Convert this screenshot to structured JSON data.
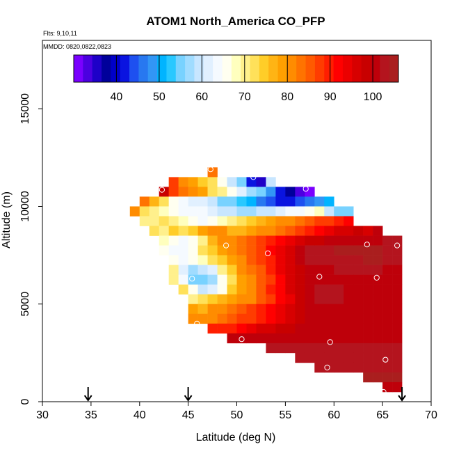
{
  "chart_data": {
    "type": "heatmap",
    "title": "ATOM1 North_America CO_PFP",
    "subtitle_flights": "Flts: 9,10,11",
    "subtitle_dates": "MMDD: 0820,0822,0823",
    "xlabel": "Latitude (deg N)",
    "ylabel": "Altitude (m)",
    "xlim": [
      30,
      70
    ],
    "ylim": [
      0,
      18500
    ],
    "x_ticks": [
      30,
      35,
      40,
      45,
      50,
      55,
      60,
      65,
      70
    ],
    "y_ticks": [
      0,
      5000,
      10000,
      15000
    ],
    "y_tick_labels": [
      "0",
      "5000",
      "10000",
      "15000"
    ],
    "grid": false,
    "colorbar": {
      "min": 30,
      "max": 106,
      "tick_values": [
        40,
        50,
        60,
        70,
        80,
        90,
        100
      ],
      "tick_labels": [
        "40",
        "50",
        "60",
        "70",
        "80",
        "90",
        "100"
      ],
      "colors": [
        "#7a00ff",
        "#4b00e0",
        "#1e00c8",
        "#00009b",
        "#0000c8",
        "#0a14e0",
        "#1e50f0",
        "#2878f0",
        "#3296f5",
        "#00b4ff",
        "#28c8ff",
        "#78d2ff",
        "#a0dcff",
        "#c8e6ff",
        "#e1f0ff",
        "#f5faff",
        "#fffff0",
        "#ffffbe",
        "#fff08c",
        "#ffe15a",
        "#ffcd28",
        "#ffb414",
        "#ffa000",
        "#ff8c00",
        "#ff7300",
        "#ff5a00",
        "#ff3c00",
        "#ff1e00",
        "#ff0000",
        "#eb0000",
        "#d70000",
        "#c80000",
        "#be000a",
        "#b4141e",
        "#aa1e1e"
      ]
    },
    "markers": [
      {
        "label": "arrow-1",
        "lat": 34.7
      },
      {
        "label": "arrow-2",
        "lat": 45.0
      },
      {
        "label": "arrow-3",
        "lat": 67.0
      }
    ],
    "cell_lat_step": 1,
    "cell_alt_step": 500,
    "cells": [
      {
        "lat0": 47,
        "alt0": 11500,
        "lats": [
          47
        ],
        "values": [
          84
        ]
      },
      {
        "lat0": 43,
        "alt0": 11000,
        "lats": [
          43,
          44,
          45,
          46,
          47,
          48,
          49,
          50,
          51,
          52,
          53
        ],
        "values": [
          88,
          82,
          78,
          74,
          72,
          66,
          60,
          56,
          42,
          36,
          60
        ]
      },
      {
        "lat0": 42,
        "alt0": 10500,
        "lats": [
          42,
          43,
          44,
          45,
          46,
          47,
          48,
          49,
          50,
          51,
          52,
          53,
          54,
          55,
          56,
          57
        ],
        "values": [
          98,
          88,
          84,
          80,
          78,
          72,
          70,
          66,
          62,
          58,
          56,
          48,
          42,
          38,
          34,
          32
        ]
      },
      {
        "lat0": 40,
        "alt0": 10000,
        "lats": [
          40,
          41,
          42,
          43,
          44,
          45,
          46,
          47,
          48,
          49,
          50,
          51,
          52,
          53,
          54,
          55,
          56,
          57,
          58,
          59
        ],
        "values": [
          84,
          76,
          72,
          66,
          64,
          62,
          62,
          60,
          56,
          54,
          52,
          50,
          46,
          44,
          42,
          42,
          44,
          46,
          48,
          50
        ]
      },
      {
        "lat0": 39,
        "alt0": 9500,
        "lats": [
          39,
          40,
          41,
          42,
          43,
          44,
          45,
          46,
          47,
          48,
          49,
          50,
          51,
          52,
          53,
          54,
          55,
          56,
          57,
          58,
          59,
          60,
          61
        ],
        "values": [
          80,
          72,
          70,
          68,
          66,
          64,
          64,
          64,
          62,
          60,
          60,
          58,
          58,
          60,
          60,
          62,
          64,
          64,
          66,
          68,
          60,
          56,
          54
        ]
      },
      {
        "lat0": 40,
        "alt0": 9000,
        "lats": [
          40,
          41,
          42,
          43,
          44,
          45,
          46,
          47,
          48,
          49,
          50,
          51,
          52,
          53,
          54,
          55,
          56,
          57,
          58,
          59,
          60,
          61
        ],
        "values": [
          70,
          70,
          72,
          70,
          68,
          66,
          64,
          66,
          68,
          70,
          72,
          74,
          76,
          78,
          80,
          82,
          84,
          86,
          88,
          88,
          90,
          92
        ]
      },
      {
        "lat0": 41,
        "alt0": 8500,
        "lats": [
          41,
          42,
          43,
          44,
          45,
          46,
          47,
          48,
          49,
          50,
          51,
          52,
          53,
          54,
          55,
          56,
          57,
          58,
          59,
          60,
          61,
          62,
          63,
          64
        ],
        "values": [
          72,
          70,
          74,
          72,
          74,
          78,
          82,
          80,
          76,
          76,
          78,
          80,
          82,
          84,
          86,
          88,
          90,
          92,
          94,
          96,
          96,
          98,
          96,
          100
        ]
      },
      {
        "lat0": 42,
        "alt0": 8000,
        "lats": [
          42,
          43,
          44,
          45,
          46,
          47,
          48,
          49,
          50,
          51,
          52,
          53,
          54,
          55,
          56,
          57,
          58,
          59,
          60,
          61,
          62,
          63,
          64,
          65,
          66
        ],
        "values": [
          68,
          66,
          64,
          66,
          70,
          76,
          80,
          82,
          84,
          86,
          88,
          90,
          92,
          94,
          96,
          98,
          98,
          100,
          100,
          100,
          100,
          100,
          100,
          102,
          102
        ]
      },
      {
        "lat0": 42,
        "alt0": 7500,
        "lats": [
          42,
          43,
          44,
          45,
          46,
          47,
          48,
          49,
          50,
          51,
          52,
          53,
          54,
          55,
          56,
          57,
          58,
          59,
          60,
          61,
          62,
          63,
          64,
          65,
          66
        ],
        "values": [
          66,
          64,
          64,
          66,
          72,
          74,
          78,
          80,
          84,
          86,
          88,
          92,
          94,
          96,
          100,
          102,
          102,
          102,
          104,
          104,
          104,
          104,
          104,
          102,
          102
        ]
      },
      {
        "lat0": 43,
        "alt0": 7000,
        "lats": [
          43,
          44,
          45,
          46,
          47,
          48,
          49,
          50,
          51,
          52,
          53,
          54,
          55,
          56,
          57,
          58,
          59,
          60,
          61,
          62,
          63,
          64,
          65,
          66
        ],
        "values": [
          66,
          64,
          66,
          68,
          72,
          74,
          78,
          82,
          86,
          88,
          90,
          94,
          96,
          100,
          102,
          102,
          102,
          102,
          102,
          102,
          104,
          104,
          102,
          102
        ]
      },
      {
        "lat0": 43,
        "alt0": 6500,
        "lats": [
          43,
          44,
          45,
          46,
          47,
          48,
          49,
          50,
          51,
          52,
          53,
          54,
          55,
          56,
          57,
          58,
          59,
          60,
          61,
          62,
          63,
          64,
          65,
          66
        ],
        "values": [
          70,
          62,
          58,
          60,
          62,
          70,
          74,
          80,
          84,
          86,
          90,
          94,
          96,
          98,
          100,
          100,
          100,
          102,
          102,
          102,
          102,
          102,
          100,
          100
        ]
      },
      {
        "lat0": 43,
        "alt0": 6000,
        "lats": [
          43,
          44,
          45,
          46,
          47,
          48,
          49,
          50,
          51,
          52,
          53,
          54,
          55,
          56,
          57,
          58,
          59,
          60,
          61,
          62,
          63,
          64,
          65,
          66
        ],
        "values": [
          70,
          64,
          56,
          54,
          58,
          66,
          72,
          78,
          82,
          86,
          88,
          92,
          96,
          98,
          100,
          100,
          100,
          100,
          100,
          100,
          100,
          100,
          100,
          100
        ]
      },
      {
        "lat0": 44,
        "alt0": 5500,
        "lats": [
          44,
          45,
          46,
          47,
          48,
          49,
          50,
          51,
          52,
          53,
          54,
          55,
          56,
          57,
          58,
          59,
          60,
          61,
          62,
          63,
          64,
          65,
          66
        ],
        "values": [
          72,
          66,
          60,
          62,
          66,
          74,
          78,
          82,
          86,
          90,
          92,
          96,
          98,
          100,
          102,
          102,
          102,
          100,
          100,
          100,
          100,
          100,
          100
        ]
      },
      {
        "lat0": 45,
        "alt0": 5000,
        "lats": [
          45,
          46,
          47,
          48,
          49,
          50,
          51,
          52,
          53,
          54,
          55,
          56,
          57,
          58,
          59,
          60,
          61,
          62,
          63,
          64,
          65,
          66
        ],
        "values": [
          70,
          72,
          74,
          76,
          78,
          80,
          82,
          86,
          88,
          92,
          94,
          98,
          100,
          102,
          102,
          102,
          100,
          100,
          100,
          100,
          100,
          100
        ]
      },
      {
        "lat0": 45,
        "alt0": 4500,
        "lats": [
          45,
          46,
          47,
          48,
          49,
          50,
          51,
          52,
          53,
          54,
          55,
          56,
          57,
          58,
          59,
          60,
          61,
          62,
          63,
          64,
          65,
          66
        ],
        "values": [
          78,
          76,
          80,
          82,
          84,
          86,
          88,
          90,
          92,
          94,
          96,
          98,
          100,
          100,
          100,
          100,
          100,
          100,
          100,
          100,
          100,
          100
        ]
      },
      {
        "lat0": 45,
        "alt0": 4000,
        "lats": [
          45,
          46,
          47,
          48,
          49,
          50,
          51,
          52,
          53,
          54,
          55,
          56,
          57,
          58,
          59,
          60,
          61,
          62,
          63,
          64,
          65,
          66
        ],
        "values": [
          82,
          80,
          82,
          84,
          86,
          88,
          88,
          90,
          92,
          94,
          96,
          98,
          100,
          100,
          100,
          100,
          100,
          100,
          100,
          100,
          100,
          100
        ]
      },
      {
        "lat0": 47,
        "alt0": 3500,
        "lats": [
          47,
          48,
          49,
          50,
          51,
          52,
          53,
          54,
          55,
          56,
          57,
          58,
          59,
          60,
          61,
          62,
          63,
          64,
          65,
          66
        ],
        "values": [
          90,
          90,
          90,
          92,
          94,
          96,
          96,
          98,
          98,
          100,
          100,
          100,
          100,
          100,
          100,
          100,
          100,
          100,
          100,
          100
        ]
      },
      {
        "lat0": 49,
        "alt0": 3000,
        "lats": [
          49,
          50,
          51,
          52,
          53,
          54,
          55,
          56,
          57,
          58,
          59,
          60,
          61,
          62,
          63,
          64,
          65,
          66
        ],
        "values": [
          100,
          100,
          100,
          100,
          100,
          100,
          100,
          100,
          100,
          100,
          100,
          100,
          100,
          100,
          100,
          100,
          100,
          100
        ]
      },
      {
        "lat0": 53,
        "alt0": 2500,
        "lats": [
          53,
          54,
          55,
          56,
          57,
          58,
          59,
          60,
          61,
          62,
          63,
          64,
          65,
          66
        ],
        "values": [
          102,
          102,
          102,
          102,
          102,
          102,
          102,
          102,
          102,
          102,
          102,
          102,
          102,
          102
        ]
      },
      {
        "lat0": 56,
        "alt0": 2000,
        "lats": [
          56,
          57,
          58,
          59,
          60,
          61,
          62,
          63,
          64,
          65,
          66
        ],
        "values": [
          102,
          102,
          102,
          102,
          102,
          102,
          102,
          102,
          102,
          102,
          102
        ]
      },
      {
        "lat0": 58,
        "alt0": 1500,
        "lats": [
          58,
          59,
          60,
          61,
          62,
          63,
          64,
          65,
          66
        ],
        "values": [
          102,
          102,
          102,
          102,
          102,
          102,
          102,
          102,
          102
        ]
      },
      {
        "lat0": 63,
        "alt0": 1000,
        "lats": [
          63,
          64,
          65,
          66
        ],
        "values": [
          104,
          104,
          104,
          104
        ]
      },
      {
        "lat0": 65,
        "alt0": 500,
        "lats": [
          65,
          66
        ],
        "values": [
          100,
          100
        ]
      }
    ],
    "samples": [
      {
        "lat": 47.3,
        "alt": 11900
      },
      {
        "lat": 51.7,
        "alt": 11500
      },
      {
        "lat": 42.3,
        "alt": 10850
      },
      {
        "lat": 57.1,
        "alt": 10900
      },
      {
        "lat": 48.9,
        "alt": 8000
      },
      {
        "lat": 53.2,
        "alt": 7600
      },
      {
        "lat": 63.4,
        "alt": 8050
      },
      {
        "lat": 66.5,
        "alt": 8000
      },
      {
        "lat": 45.4,
        "alt": 6300
      },
      {
        "lat": 58.5,
        "alt": 6400
      },
      {
        "lat": 64.4,
        "alt": 6350
      },
      {
        "lat": 45.9,
        "alt": 4000
      },
      {
        "lat": 50.5,
        "alt": 3200
      },
      {
        "lat": 59.6,
        "alt": 3050
      },
      {
        "lat": 65.3,
        "alt": 2150
      },
      {
        "lat": 59.3,
        "alt": 1750
      },
      {
        "lat": 65.1,
        "alt": 500
      }
    ]
  }
}
